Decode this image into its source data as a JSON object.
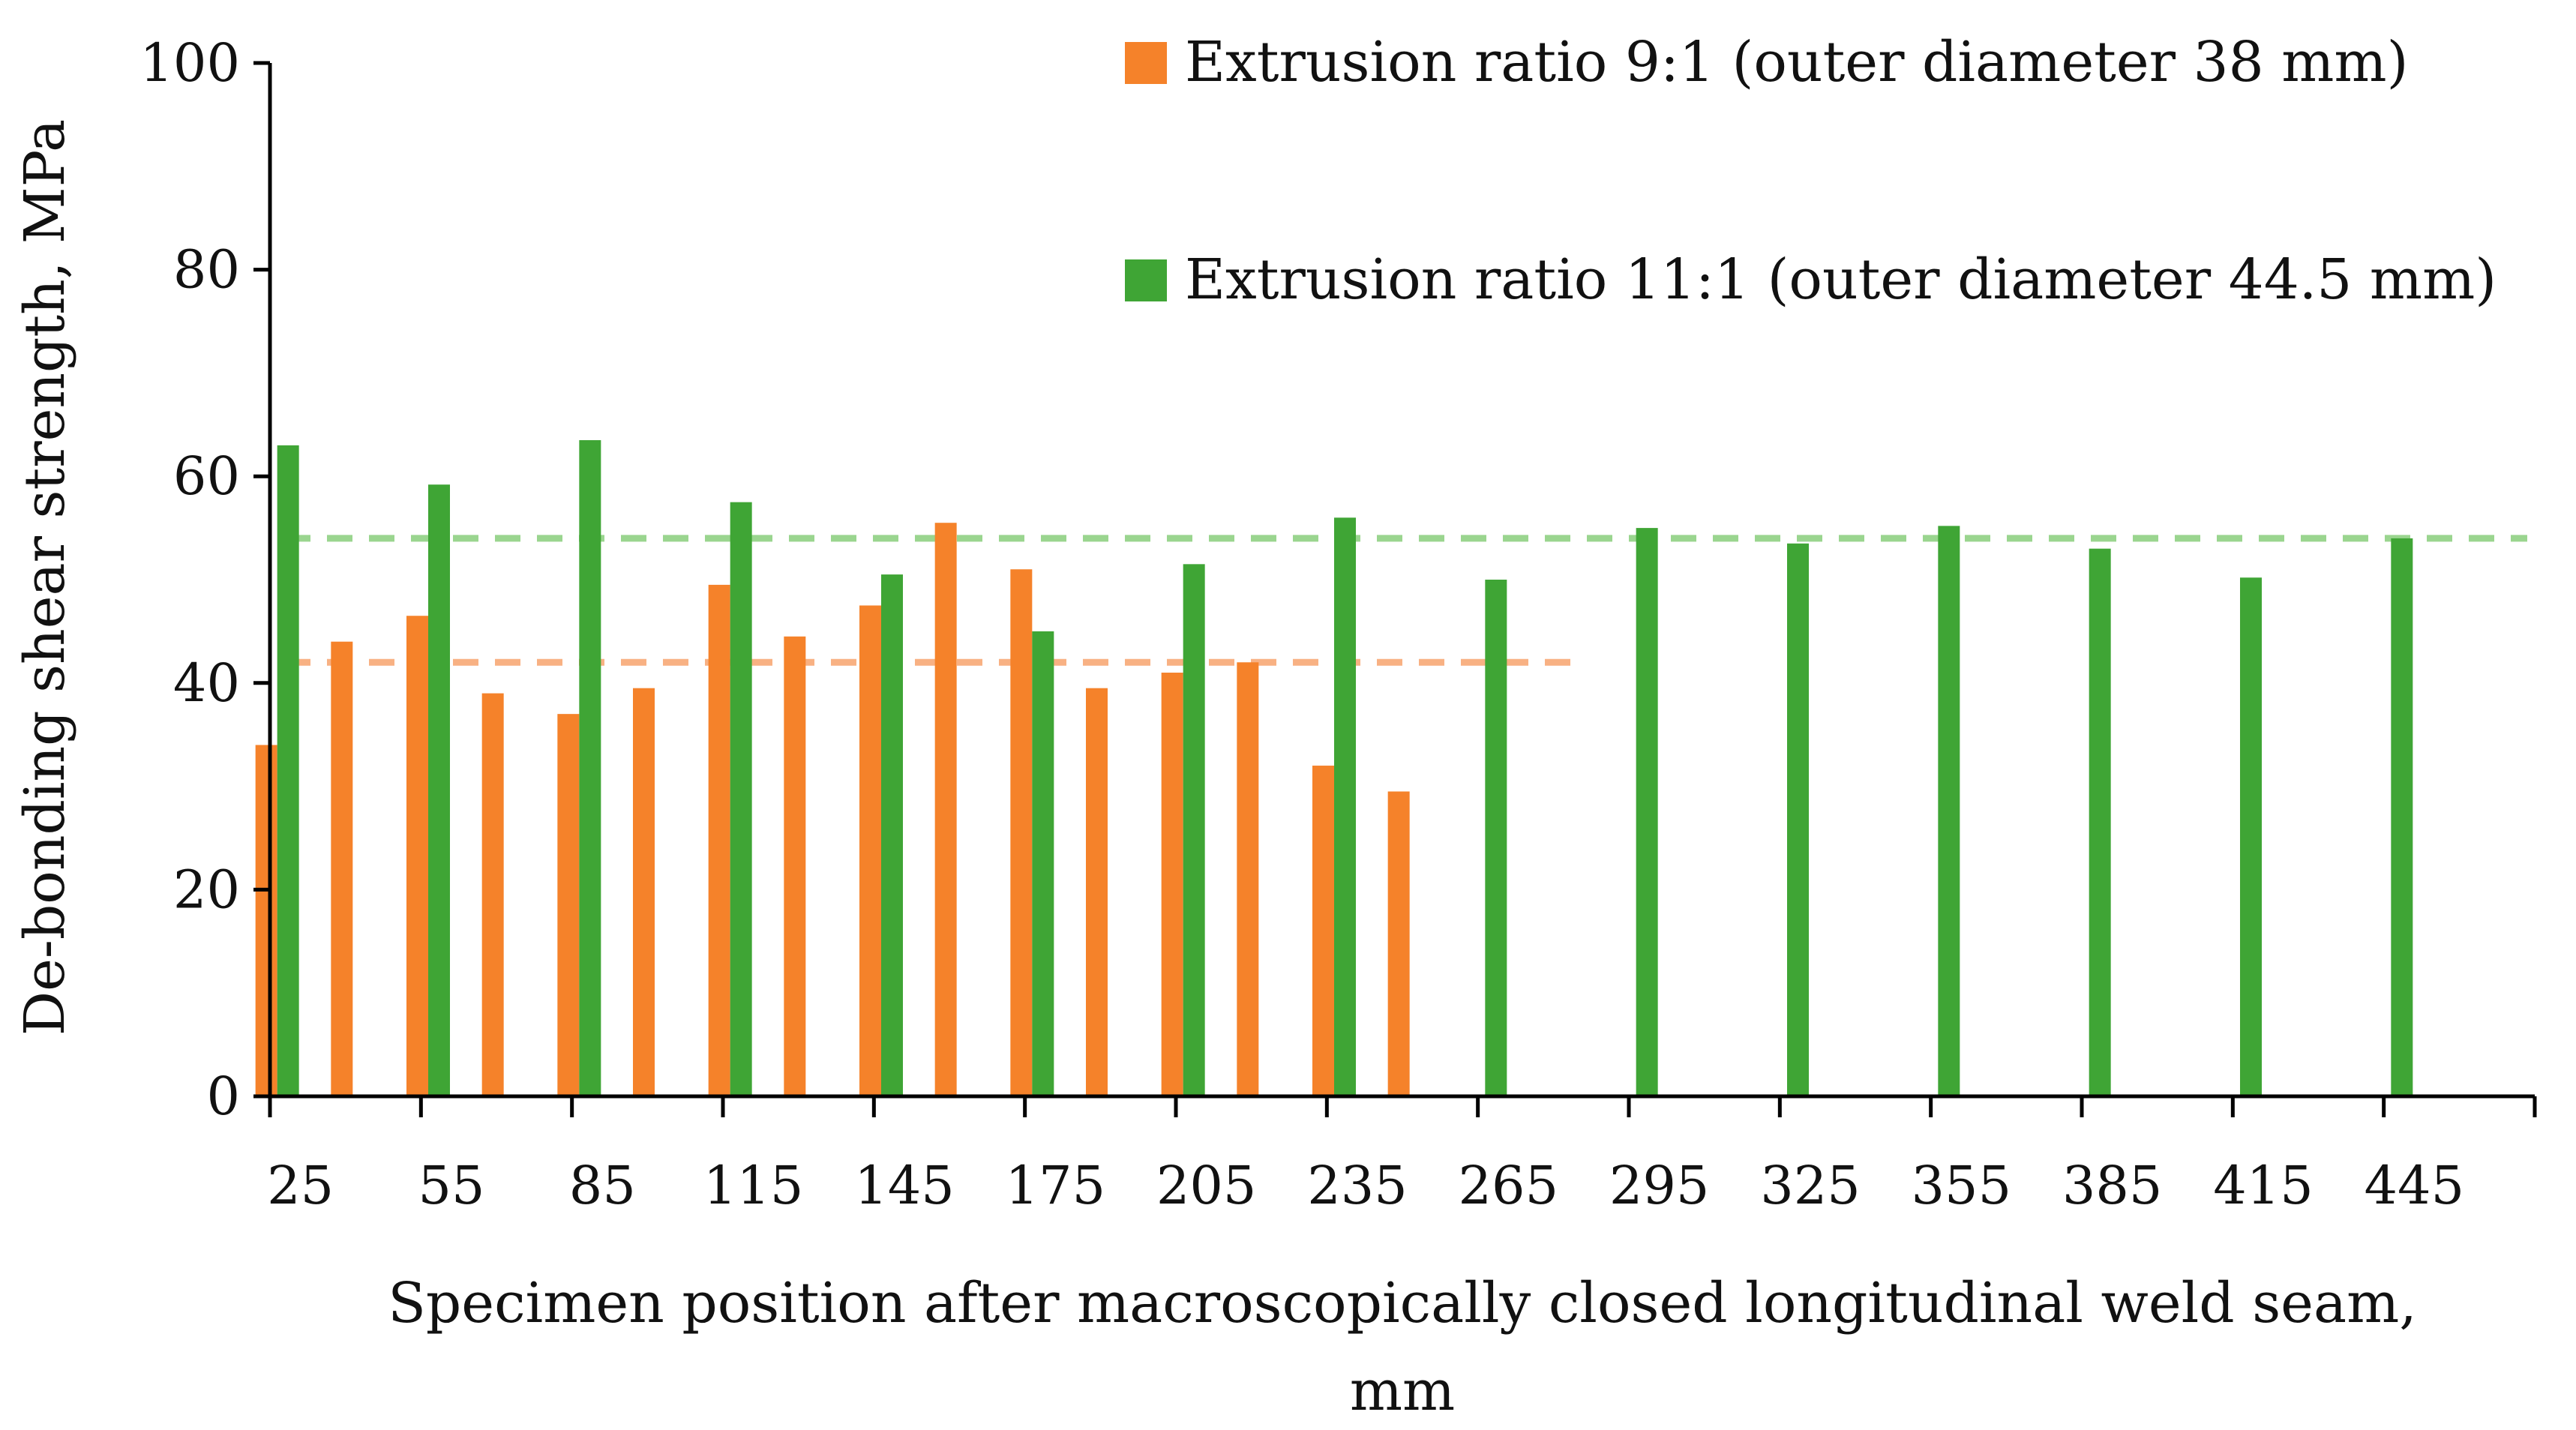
{
  "chart_data": {
    "type": "bar",
    "xlabel_line1": "Specimen position after macroscopically closed longitudinal weld seam,",
    "xlabel_line2": "mm",
    "ylabel": "De-bonding shear strength, MPa",
    "ylim": [
      0,
      100
    ],
    "yticks": [
      "0",
      "20",
      "40",
      "60",
      "80",
      "100"
    ],
    "xticks": [
      "25",
      "55",
      "85",
      "115",
      "145",
      "175",
      "205",
      "235",
      "265",
      "295",
      "325",
      "355",
      "385",
      "415",
      "445"
    ],
    "legend_position": "top-right",
    "series": [
      {
        "name": "Extrusion ratio 9:1 (outer diameter 38 mm)",
        "color": "#f5822a",
        "avg_line_color": "#f8b183",
        "average": 42,
        "points": [
          {
            "x": 25,
            "y": 34
          },
          {
            "x": 40,
            "y": 44
          },
          {
            "x": 55,
            "y": 46.5
          },
          {
            "x": 70,
            "y": 39
          },
          {
            "x": 85,
            "y": 37
          },
          {
            "x": 100,
            "y": 39.5
          },
          {
            "x": 115,
            "y": 49.5
          },
          {
            "x": 130,
            "y": 44.5
          },
          {
            "x": 145,
            "y": 47.5
          },
          {
            "x": 160,
            "y": 55.5
          },
          {
            "x": 175,
            "y": 51
          },
          {
            "x": 190,
            "y": 39.5
          },
          {
            "x": 205,
            "y": 41
          },
          {
            "x": 220,
            "y": 42
          },
          {
            "x": 235,
            "y": 32
          },
          {
            "x": 250,
            "y": 29.5
          }
        ]
      },
      {
        "name": "Extrusion ratio 11:1 (outer diameter 44.5 mm)",
        "color": "#3fa535",
        "avg_line_color": "#9ad58f",
        "average": 54,
        "points": [
          {
            "x": 25,
            "y": 63
          },
          {
            "x": 55,
            "y": 59.2
          },
          {
            "x": 85,
            "y": 63.5
          },
          {
            "x": 115,
            "y": 57.5
          },
          {
            "x": 145,
            "y": 50.5
          },
          {
            "x": 175,
            "y": 45
          },
          {
            "x": 205,
            "y": 51.5
          },
          {
            "x": 235,
            "y": 56
          },
          {
            "x": 265,
            "y": 50
          },
          {
            "x": 295,
            "y": 55
          },
          {
            "x": 325,
            "y": 53.5
          },
          {
            "x": 355,
            "y": 55.2
          },
          {
            "x": 385,
            "y": 53
          },
          {
            "x": 415,
            "y": 50.2
          },
          {
            "x": 445,
            "y": 54
          }
        ]
      }
    ]
  }
}
